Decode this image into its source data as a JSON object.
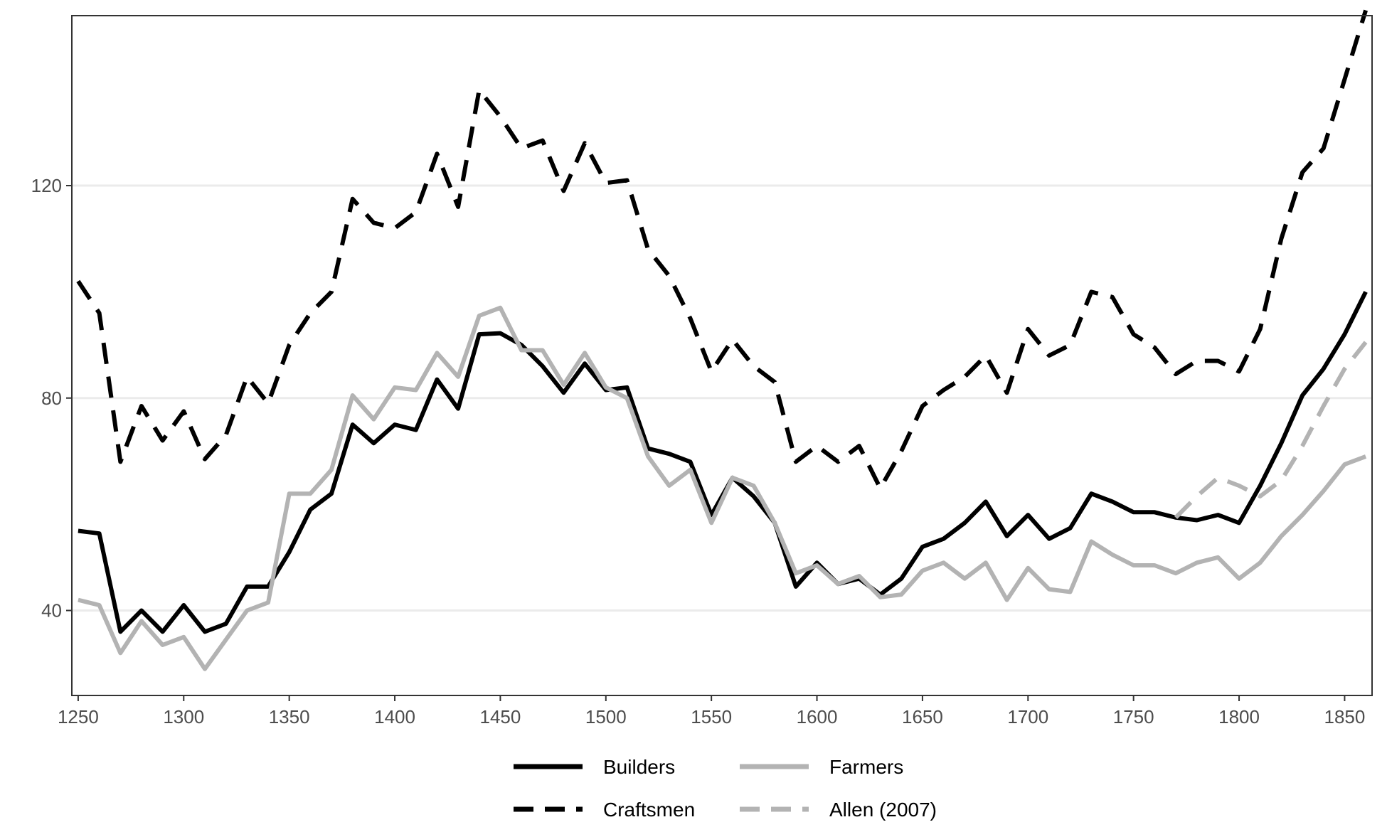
{
  "chart_data": {
    "type": "line",
    "title": "",
    "xlabel": "",
    "ylabel": "",
    "xlim": [
      1247,
      1863
    ],
    "ylim": [
      24,
      152
    ],
    "x_ticks": [
      1250,
      1300,
      1350,
      1400,
      1450,
      1500,
      1550,
      1600,
      1650,
      1700,
      1750,
      1800,
      1850
    ],
    "x_tick_labels": [
      "1250",
      "1300",
      "1350",
      "1400",
      "1450",
      "1500",
      "1550",
      "1600",
      "1650",
      "1700",
      "1750",
      "1800",
      "1850"
    ],
    "y_ticks": [
      40,
      80,
      120
    ],
    "y_tick_labels": [
      "40",
      "80",
      "120"
    ],
    "grid": "horizontal",
    "legend_position": "bottom",
    "series": [
      {
        "name": "Builders",
        "style": "solid",
        "color": "#000000",
        "x": [
          1250,
          1260,
          1270,
          1280,
          1290,
          1300,
          1310,
          1320,
          1330,
          1340,
          1350,
          1360,
          1370,
          1380,
          1390,
          1400,
          1410,
          1420,
          1430,
          1440,
          1450,
          1460,
          1470,
          1480,
          1490,
          1500,
          1510,
          1520,
          1530,
          1540,
          1550,
          1560,
          1570,
          1580,
          1590,
          1600,
          1610,
          1620,
          1630,
          1640,
          1650,
          1660,
          1670,
          1680,
          1690,
          1700,
          1710,
          1720,
          1730,
          1740,
          1750,
          1760,
          1770,
          1780,
          1790,
          1800,
          1810,
          1820,
          1830,
          1840,
          1850,
          1860
        ],
        "y": [
          55,
          54.5,
          36,
          40,
          36,
          41,
          36,
          37.5,
          44.5,
          44.5,
          51,
          59,
          62,
          75,
          71.5,
          75,
          74,
          83.5,
          78,
          92,
          92.2,
          90,
          86,
          81,
          86.5,
          81.5,
          82,
          70.5,
          69.5,
          68,
          58,
          65,
          61.5,
          56.5,
          44.5,
          49,
          45,
          46,
          43,
          46,
          52,
          53.5,
          56.5,
          60.5,
          54,
          58,
          53.5,
          55.5,
          62,
          60.5,
          58.5,
          58.5,
          57.5,
          57,
          58,
          56.5,
          63.5,
          71.5,
          80.5,
          85.5,
          92,
          100
        ]
      },
      {
        "name": "Farmers",
        "style": "solid",
        "color": "#b3b3b3",
        "x": [
          1250,
          1260,
          1270,
          1280,
          1290,
          1300,
          1310,
          1320,
          1330,
          1340,
          1350,
          1360,
          1370,
          1380,
          1390,
          1400,
          1410,
          1420,
          1430,
          1440,
          1450,
          1460,
          1470,
          1480,
          1490,
          1500,
          1510,
          1520,
          1530,
          1540,
          1550,
          1560,
          1570,
          1580,
          1590,
          1600,
          1610,
          1620,
          1630,
          1640,
          1650,
          1660,
          1670,
          1680,
          1690,
          1700,
          1710,
          1720,
          1730,
          1740,
          1750,
          1760,
          1770,
          1780,
          1790,
          1800,
          1810,
          1820,
          1830,
          1840,
          1850,
          1860
        ],
        "y": [
          42,
          41,
          32,
          38,
          33.5,
          35,
          29,
          34.5,
          40,
          41.5,
          62,
          62,
          66.5,
          80.5,
          76,
          82,
          81.5,
          88.5,
          84,
          95.5,
          97,
          89,
          89,
          82.5,
          88.5,
          82,
          80,
          69,
          63.5,
          66.5,
          56.5,
          65,
          63.5,
          56.5,
          47,
          48.5,
          45,
          46.5,
          42.5,
          43,
          47.5,
          49,
          46,
          49,
          42,
          48,
          44,
          43.5,
          53,
          50.5,
          48.5,
          48.5,
          47,
          49,
          50,
          46,
          49,
          54,
          58,
          62.5,
          67.5,
          69
        ]
      },
      {
        "name": "Craftsmen",
        "style": "dashed",
        "color": "#000000",
        "x": [
          1250,
          1260,
          1270,
          1280,
          1290,
          1300,
          1310,
          1320,
          1330,
          1340,
          1350,
          1360,
          1370,
          1380,
          1390,
          1400,
          1410,
          1420,
          1430,
          1440,
          1450,
          1460,
          1470,
          1480,
          1490,
          1500,
          1510,
          1520,
          1530,
          1540,
          1550,
          1560,
          1570,
          1580,
          1590,
          1600,
          1610,
          1620,
          1630,
          1640,
          1650,
          1660,
          1670,
          1680,
          1690,
          1700,
          1710,
          1720,
          1730,
          1740,
          1750,
          1760,
          1770,
          1780,
          1790,
          1800,
          1810,
          1820,
          1830,
          1840,
          1850,
          1860
        ],
        "y": [
          102,
          96,
          68,
          78.5,
          72,
          77.5,
          68.5,
          73,
          84,
          79,
          90,
          96,
          100,
          117.5,
          113,
          112,
          115,
          126,
          116,
          138,
          133,
          127,
          128.5,
          119,
          128,
          120.5,
          121,
          108,
          103,
          95,
          85,
          91,
          86,
          83,
          68,
          71,
          68,
          71,
          63,
          70,
          78.5,
          81.5,
          84,
          88,
          81,
          93,
          88,
          90,
          100,
          99,
          92,
          89.5,
          84.5,
          87,
          87,
          85,
          93,
          110,
          122.5,
          127,
          140,
          153
        ]
      },
      {
        "name": "Allen (2007)",
        "style": "dashed",
        "color": "#b3b3b3",
        "x": [
          1770,
          1780,
          1790,
          1800,
          1810,
          1820,
          1830,
          1840,
          1850,
          1860
        ],
        "y": [
          57.5,
          61.5,
          65,
          63.5,
          61.5,
          64.5,
          71,
          78.5,
          85.5,
          90.5
        ]
      }
    ]
  }
}
